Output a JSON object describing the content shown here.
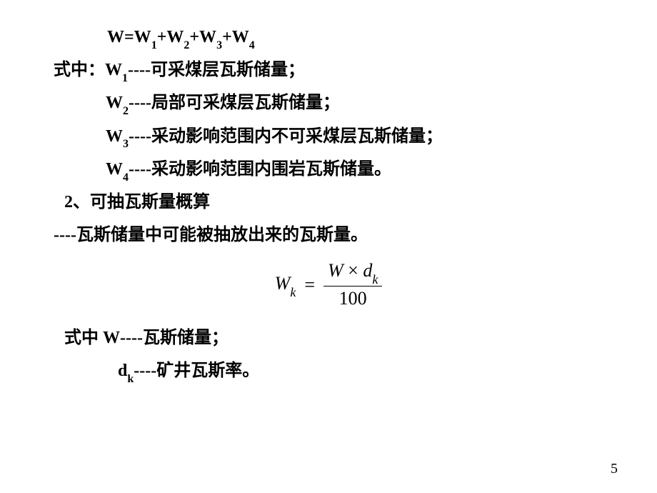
{
  "formula_main": {
    "lhs": "W=W",
    "s1": "1",
    "p1": "+W",
    "s2": "2",
    "p2": "+W",
    "s3": "3",
    "p3": "+W",
    "s4": "4"
  },
  "def_prefix": "式中：",
  "defs": [
    {
      "symbol": "W",
      "sub": "1",
      "dash": "----",
      "text": "可采煤层瓦斯储量；"
    },
    {
      "symbol": "W",
      "sub": "2",
      "dash": "----",
      "text": "局部可采煤层瓦斯储量；"
    },
    {
      "symbol": "W",
      "sub": "3",
      "dash": "----",
      "text": "采动影响范围内不可采煤层瓦斯储量；"
    },
    {
      "symbol": "W",
      "sub": "4",
      "dash": "----",
      "text": "采动影响范围内围岩瓦斯储量。"
    }
  ],
  "section2": "2、可抽瓦斯量概算",
  "desc2": "----瓦斯储量中可能被抽放出来的瓦斯量。",
  "frac": {
    "lhs_sym": "W",
    "lhs_sub": "k",
    "eq": "=",
    "num_w": "W",
    "num_times": " × ",
    "num_d": "d",
    "num_sub": "k",
    "den": "100"
  },
  "where_prefix": "式中  ",
  "where": [
    {
      "symbol": "W",
      "sub": "",
      "dash": "----",
      "text": "瓦斯储量；"
    },
    {
      "symbol": "d",
      "sub": "k",
      "dash": "----",
      "text": "矿井瓦斯率。"
    }
  ],
  "page_num": "5"
}
